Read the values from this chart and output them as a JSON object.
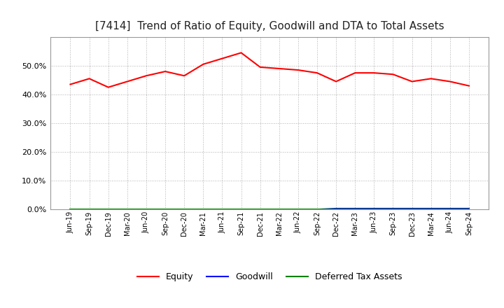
{
  "title": "[7414]  Trend of Ratio of Equity, Goodwill and DTA to Total Assets",
  "x_labels": [
    "Jun-19",
    "Sep-19",
    "Dec-19",
    "Mar-20",
    "Jun-20",
    "Sep-20",
    "Dec-20",
    "Mar-21",
    "Jun-21",
    "Sep-21",
    "Dec-21",
    "Mar-22",
    "Jun-22",
    "Sep-22",
    "Dec-22",
    "Mar-23",
    "Jun-23",
    "Sep-23",
    "Dec-23",
    "Mar-24",
    "Jun-24",
    "Sep-24"
  ],
  "equity": [
    43.5,
    45.5,
    42.5,
    44.5,
    46.5,
    48.0,
    46.5,
    50.5,
    52.5,
    54.5,
    49.5,
    49.0,
    48.5,
    47.5,
    44.5,
    47.5,
    47.5,
    47.0,
    44.5,
    45.5,
    44.5,
    43.0
  ],
  "goodwill": [
    0.0,
    0.0,
    0.0,
    0.0,
    0.0,
    0.0,
    0.0,
    0.0,
    0.0,
    0.0,
    0.0,
    0.0,
    0.0,
    0.0,
    0.3,
    0.3,
    0.3,
    0.3,
    0.3,
    0.3,
    0.3,
    0.3
  ],
  "dta": [
    0.0,
    0.0,
    0.0,
    0.0,
    0.0,
    0.0,
    0.0,
    0.0,
    0.0,
    0.0,
    0.0,
    0.0,
    0.0,
    0.0,
    0.0,
    0.0,
    0.0,
    0.0,
    0.0,
    0.0,
    0.0,
    0.0
  ],
  "equity_color": "#ff0000",
  "goodwill_color": "#0000ff",
  "dta_color": "#008000",
  "ylim": [
    0,
    60
  ],
  "yticks": [
    0,
    10,
    20,
    30,
    40,
    50
  ],
  "background_color": "#ffffff",
  "plot_bg_color": "#ffffff",
  "grid_color": "#b0b0b0",
  "title_fontsize": 11,
  "legend_labels": [
    "Equity",
    "Goodwill",
    "Deferred Tax Assets"
  ]
}
